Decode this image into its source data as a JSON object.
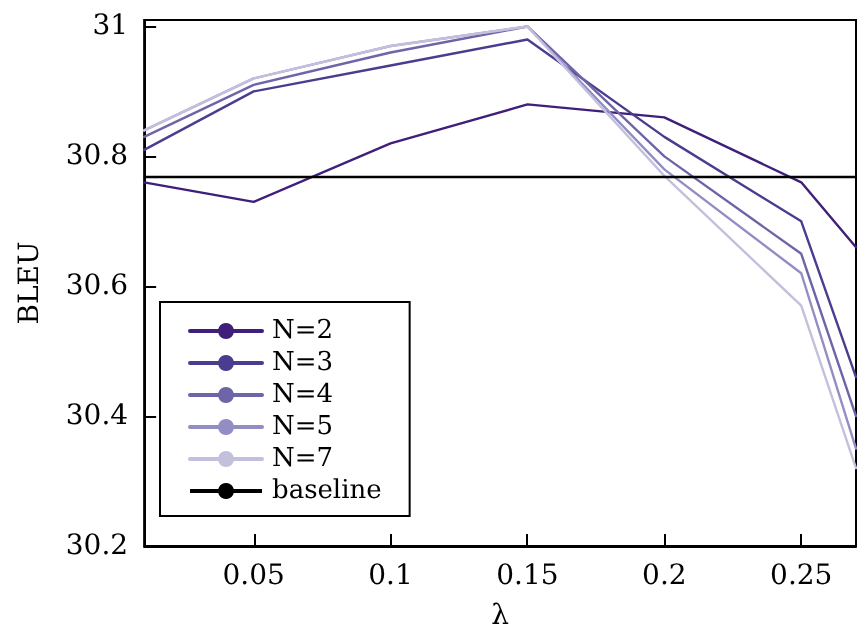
{
  "chart_data": {
    "type": "line",
    "xlabel": "λ",
    "ylabel": "BLEU",
    "x": [
      0.01,
      0.05,
      0.1,
      0.15,
      0.2,
      0.25,
      0.27
    ],
    "series": [
      {
        "name": "N=2",
        "color": "#3f1f7a",
        "values": [
          30.76,
          30.73,
          30.82,
          30.88,
          30.86,
          30.76,
          30.66
        ]
      },
      {
        "name": "N=3",
        "color": "#4a3d8f",
        "values": [
          30.81,
          30.9,
          30.94,
          30.98,
          30.83,
          30.7,
          30.46
        ]
      },
      {
        "name": "N=4",
        "color": "#6d65a8",
        "values": [
          30.83,
          30.91,
          30.96,
          31.0,
          30.8,
          30.65,
          30.4
        ]
      },
      {
        "name": "N=5",
        "color": "#928ec4",
        "values": [
          30.84,
          30.92,
          30.97,
          31.0,
          30.78,
          30.62,
          30.35
        ]
      },
      {
        "name": "N=7",
        "color": "#c3c0dd",
        "values": [
          30.84,
          30.92,
          30.97,
          31.0,
          30.77,
          30.57,
          30.32
        ]
      }
    ],
    "ref_lines": [
      {
        "axis": "y",
        "value": 30.77,
        "label": "baseline",
        "color": "#000000"
      }
    ],
    "xlim": [
      0.01,
      0.27
    ],
    "xticks": [
      0.05,
      0.1,
      0.15,
      0.2,
      0.25
    ],
    "ylim": [
      30.2,
      31.01
    ],
    "yticks": [
      30.2,
      30.4,
      30.6,
      30.8,
      31
    ],
    "legend": "bottom left",
    "grid": false,
    "marker": "none",
    "line_style": "solid"
  }
}
